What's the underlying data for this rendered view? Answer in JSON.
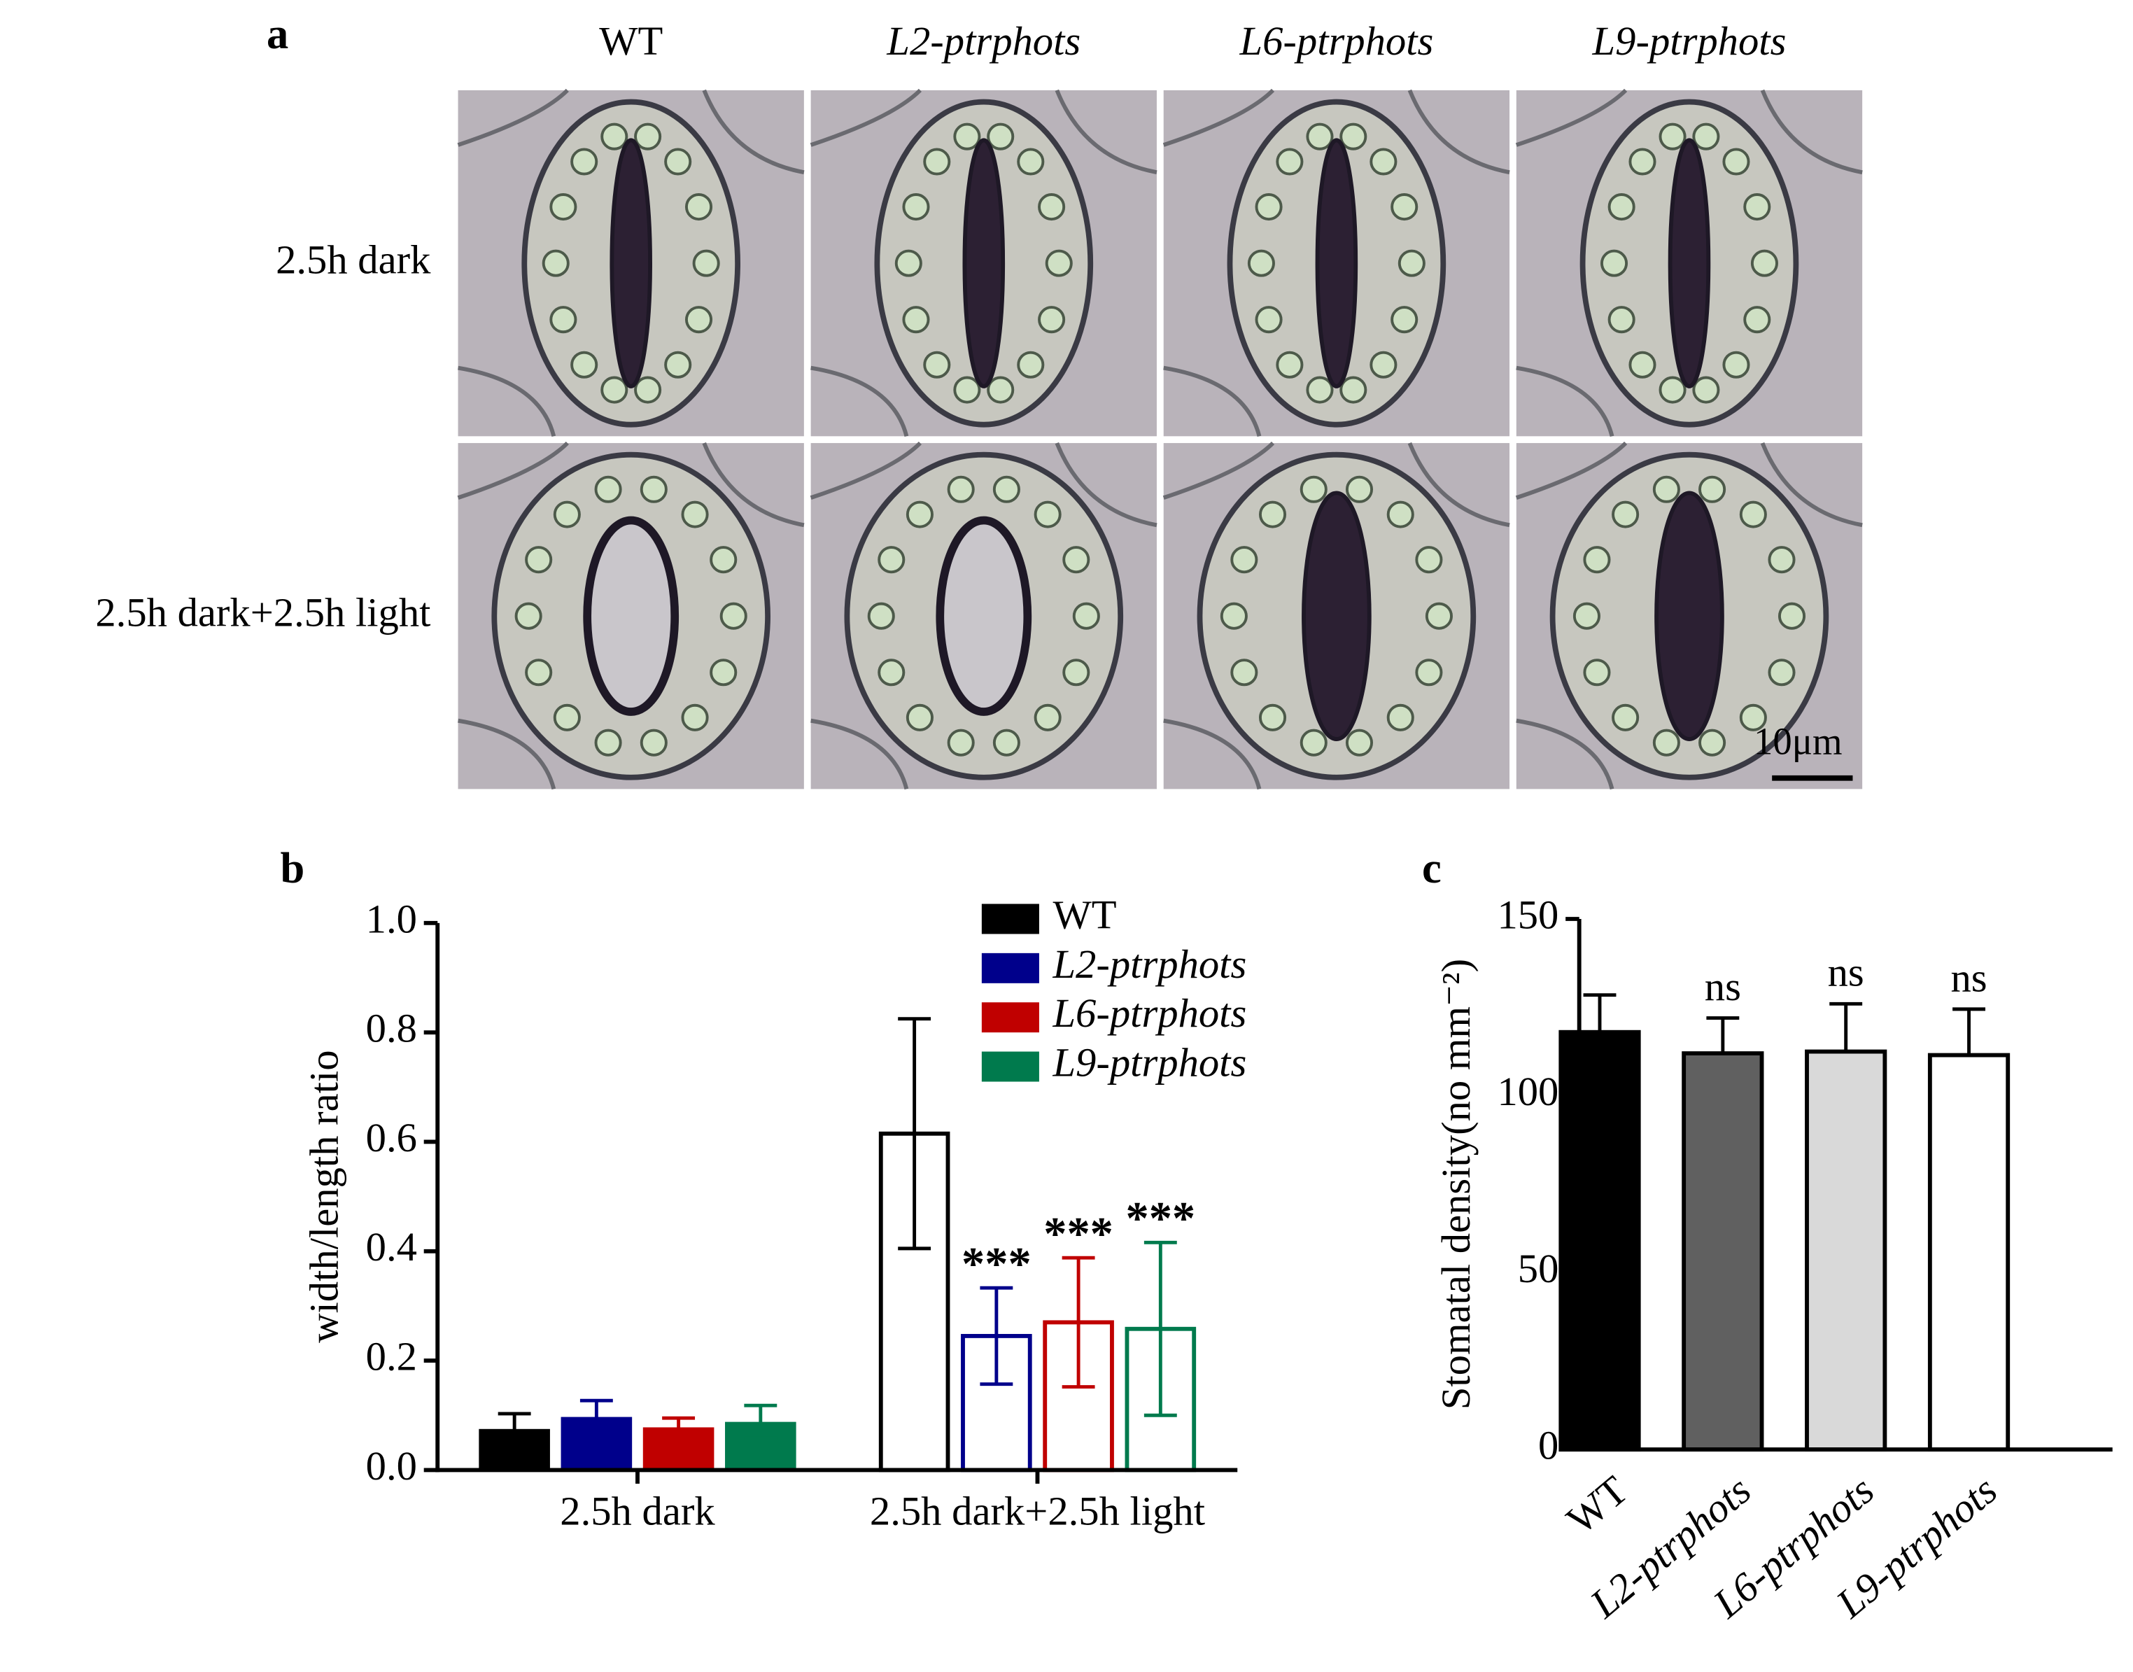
{
  "panel_a": {
    "label": "a",
    "columns": [
      "WT",
      "L2-ptrphots",
      "L6-ptrphots",
      "L9-ptrphots"
    ],
    "rows": [
      "2.5h dark",
      "2.5h dark+2.5h light"
    ],
    "scale_bar": "10μm"
  },
  "chart_data": [
    {
      "type": "bar",
      "panel": "b",
      "y_label": "width/length ratio",
      "categories": [
        "2.5h dark",
        "2.5h dark+2.5h light"
      ],
      "filled": [
        true,
        false
      ],
      "error_bars": "both",
      "series": [
        {
          "name": "WT",
          "color": "#000000",
          "values": [
            0.075,
            0.615
          ],
          "errors": [
            0.028,
            0.21
          ],
          "annotations": [
            null,
            null
          ]
        },
        {
          "name": "L2-ptrphots",
          "color": "#00008b",
          "values": [
            0.097,
            0.245
          ],
          "errors": [
            0.03,
            0.088
          ],
          "annotations": [
            null,
            "***"
          ]
        },
        {
          "name": "L6-ptrphots",
          "color": "#c00000",
          "values": [
            0.078,
            0.27
          ],
          "errors": [
            0.017,
            0.118
          ],
          "annotations": [
            null,
            "***"
          ]
        },
        {
          "name": "L9-ptrphots",
          "color": "#007a4d",
          "values": [
            0.088,
            0.258
          ],
          "errors": [
            0.03,
            0.158
          ],
          "annotations": [
            null,
            "***"
          ]
        }
      ],
      "ylim": [
        0,
        1
      ],
      "yticks": [
        {
          "value": 0,
          "label": "0.0"
        },
        {
          "value": 0.2,
          "label": "0.2"
        },
        {
          "value": 0.4,
          "label": "0.4"
        },
        {
          "value": 0.6,
          "label": "0.6"
        },
        {
          "value": 0.8,
          "label": "0.8"
        },
        {
          "value": 1,
          "label": "1.0"
        }
      ],
      "legend": "top-right"
    },
    {
      "type": "bar",
      "panel": "c",
      "y_label": "Stomatal density(no mm⁻²)",
      "categories": [
        "WT",
        "L2-ptrphots",
        "L6-ptrphots",
        "L9-ptrphots"
      ],
      "colors": [
        "#000000",
        "#606060",
        "#d9d9d9",
        "#ffffff"
      ],
      "error_bars": "upper",
      "values": [
        118,
        112,
        112.5,
        111.5
      ],
      "errors": [
        10.5,
        10,
        13.5,
        13
      ],
      "annotations": [
        null,
        "ns",
        "ns",
        "ns"
      ],
      "ylim": [
        0,
        150
      ],
      "yticks": [
        0,
        50,
        100,
        150
      ]
    }
  ]
}
